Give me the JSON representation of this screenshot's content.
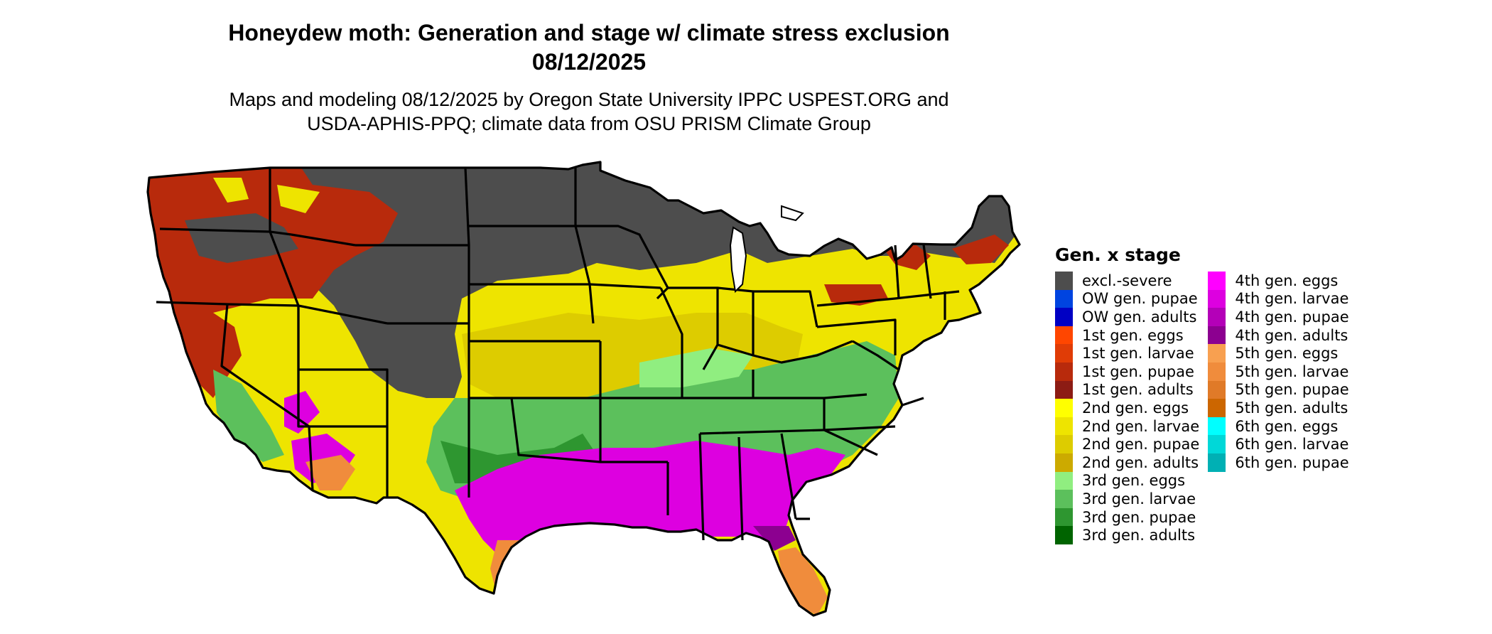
{
  "title": {
    "line1": "Honeydew moth: Generation and stage w/ climate stress exclusion",
    "line2": "08/12/2025"
  },
  "subtitle": {
    "line1": "Maps and modeling 08/12/2025 by Oregon State University IPPC USPEST.ORG and",
    "line2": "USDA-APHIS-PPQ; climate data from OSU PRISM Climate Group"
  },
  "legend": {
    "title": "Gen. x stage",
    "columns": [
      [
        {
          "label": "excl.-severe",
          "color": "#4d4d4d"
        },
        {
          "label": "OW gen. pupae",
          "color": "#0044e0"
        },
        {
          "label": "OW gen. adults",
          "color": "#0000c4"
        },
        {
          "label": "1st gen. eggs",
          "color": "#ff4600"
        },
        {
          "label": "1st gen. larvae",
          "color": "#e03c06"
        },
        {
          "label": "1st gen. pupae",
          "color": "#b82a0c"
        },
        {
          "label": "1st gen. adults",
          "color": "#8c1c14"
        },
        {
          "label": "2nd gen. eggs",
          "color": "#ffff00"
        },
        {
          "label": "2nd gen. larvae",
          "color": "#eee400"
        },
        {
          "label": "2nd gen. pupae",
          "color": "#ddcc00"
        },
        {
          "label": "2nd gen. adults",
          "color": "#ccaa00"
        },
        {
          "label": "3rd gen. eggs",
          "color": "#90ee80"
        },
        {
          "label": "3rd gen. larvae",
          "color": "#5cc05c"
        },
        {
          "label": "3rd gen. pupae",
          "color": "#2e9630"
        },
        {
          "label": "3rd gen. adults",
          "color": "#006400"
        }
      ],
      [
        {
          "label": "4th gen. eggs",
          "color": "#ff00ff"
        },
        {
          "label": "4th gen. larvae",
          "color": "#dd00e0"
        },
        {
          "label": "4th gen. pupae",
          "color": "#b400b8"
        },
        {
          "label": "4th gen. adults",
          "color": "#8c0090"
        },
        {
          "label": "5th gen. eggs",
          "color": "#f8a050"
        },
        {
          "label": "5th gen. larvae",
          "color": "#f08c3c"
        },
        {
          "label": "5th gen. pupae",
          "color": "#e07a28"
        },
        {
          "label": "5th gen. adults",
          "color": "#cc6600"
        },
        {
          "label": "6th gen. eggs",
          "color": "#00ffff"
        },
        {
          "label": "6th gen. larvae",
          "color": "#00d8d8"
        },
        {
          "label": "6th gen. pupae",
          "color": "#00b0b4"
        }
      ]
    ]
  }
}
